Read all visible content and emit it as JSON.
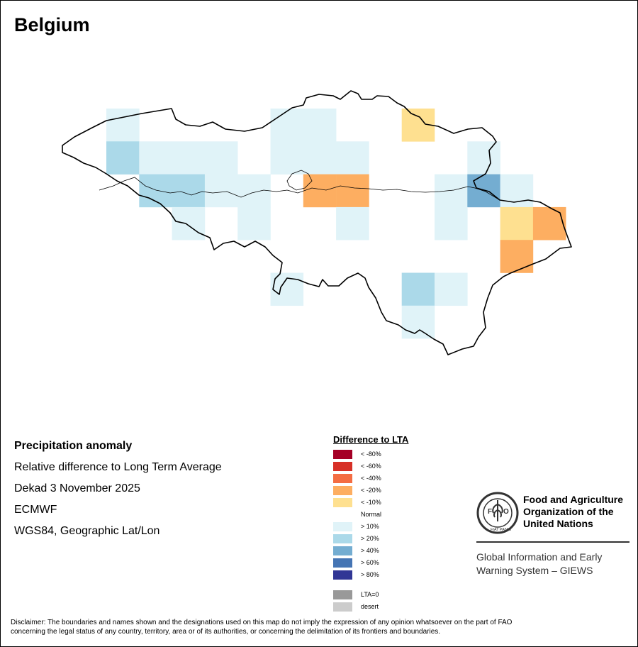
{
  "map": {
    "title": "Belgium",
    "cells": [
      {
        "row": 0,
        "col": 0,
        "cls": "p10"
      },
      {
        "row": 0,
        "col": 5,
        "cls": "p10"
      },
      {
        "row": 0,
        "col": 6,
        "cls": "p10"
      },
      {
        "row": 0,
        "col": 9,
        "cls": "m10"
      },
      {
        "row": 1,
        "col": 0,
        "cls": "p20"
      },
      {
        "row": 1,
        "col": 1,
        "cls": "p10"
      },
      {
        "row": 1,
        "col": 2,
        "cls": "p10"
      },
      {
        "row": 1,
        "col": 3,
        "cls": "p10"
      },
      {
        "row": 1,
        "col": 5,
        "cls": "p10"
      },
      {
        "row": 1,
        "col": 6,
        "cls": "p10"
      },
      {
        "row": 1,
        "col": 7,
        "cls": "p10"
      },
      {
        "row": 1,
        "col": 11,
        "cls": "p10"
      },
      {
        "row": 2,
        "col": 1,
        "cls": "p20"
      },
      {
        "row": 2,
        "col": 2,
        "cls": "p20"
      },
      {
        "row": 2,
        "col": 3,
        "cls": "p10"
      },
      {
        "row": 2,
        "col": 4,
        "cls": "p10"
      },
      {
        "row": 2,
        "col": 6,
        "cls": "m20"
      },
      {
        "row": 2,
        "col": 7,
        "cls": "m20"
      },
      {
        "row": 2,
        "col": 10,
        "cls": "p10"
      },
      {
        "row": 2,
        "col": 11,
        "cls": "p40"
      },
      {
        "row": 2,
        "col": 12,
        "cls": "p10"
      },
      {
        "row": 3,
        "col": 2,
        "cls": "p10"
      },
      {
        "row": 3,
        "col": 4,
        "cls": "p10"
      },
      {
        "row": 3,
        "col": 7,
        "cls": "p10"
      },
      {
        "row": 3,
        "col": 10,
        "cls": "p10"
      },
      {
        "row": 3,
        "col": 12,
        "cls": "m10"
      },
      {
        "row": 3,
        "col": 13,
        "cls": "m20"
      },
      {
        "row": 4,
        "col": 12,
        "cls": "m20"
      },
      {
        "row": 5,
        "col": 5,
        "cls": "p10"
      },
      {
        "row": 5,
        "col": 9,
        "cls": "p20"
      },
      {
        "row": 5,
        "col": 10,
        "cls": "p10"
      },
      {
        "row": 6,
        "col": 9,
        "cls": "p10"
      }
    ]
  },
  "info": {
    "heading": "Precipitation anomaly",
    "line1": "Relative difference to Long Term Average",
    "line2": "Dekad 3 November 2025",
    "line3": "ECMWF",
    "line4": "WGS84, Geographic Lat/Lon"
  },
  "legend": {
    "title": "Difference to LTA",
    "normal_label": "Normal",
    "items": [
      {
        "key": "m80",
        "label": "< -80%",
        "color": "#a50026"
      },
      {
        "key": "m60",
        "label": "< -60%",
        "color": "#d73027"
      },
      {
        "key": "m40",
        "label": "< -40%",
        "color": "#f46d43"
      },
      {
        "key": "m20",
        "label": "< -20%",
        "color": "#fdae61"
      },
      {
        "key": "m10",
        "label": "< -10%",
        "color": "#fee090"
      },
      {
        "key": "p10",
        "label": "> 10%",
        "color": "#e0f3f8"
      },
      {
        "key": "p20",
        "label": "> 20%",
        "color": "#abd9e9"
      },
      {
        "key": "p40",
        "label": "> 40%",
        "color": "#74add1"
      },
      {
        "key": "p60",
        "label": "> 60%",
        "color": "#4575b4"
      },
      {
        "key": "p80",
        "label": "> 80%",
        "color": "#313695"
      },
      {
        "key": "lta0",
        "label": "LTA=0",
        "color": "#999999"
      },
      {
        "key": "desert",
        "label": "desert",
        "color": "#cccccc"
      }
    ]
  },
  "logo": {
    "org_line1": "Food and Agriculture",
    "org_line2": "Organization of the",
    "org_line3": "United Nations",
    "giews_line1": "Global Information and Early",
    "giews_line2": "Warning System – GIEWS",
    "emblem_text": "FAO",
    "emblem_motto": "FIAT PANIS"
  },
  "disclaimer": {
    "line1": "Disclaimer: The boundaries and names shown and the designations used on this map do not imply the expression of any opinion whatsoever on the part of FAO",
    "line2": "concerning the legal status of any country, territory, area or of its authorities, or concerning the delimitation of its frontiers and boundaries."
  }
}
